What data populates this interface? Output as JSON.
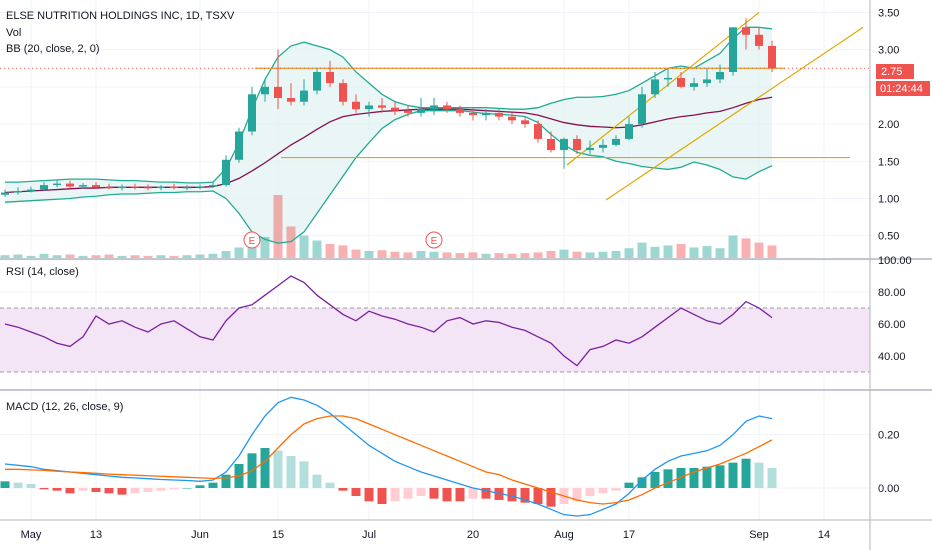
{
  "header": {
    "symbol": "ELSE NUTRITION HOLDINGS INC, 1D, TSXV",
    "vol_label": "Vol",
    "bb_label": "BB (20, close, 2, 0)"
  },
  "price_badge": {
    "value": "2.75",
    "countdown": "01:24:44",
    "color": "#ef5350"
  },
  "earnings_markers": [
    {
      "label": "E",
      "date_index": 19
    },
    {
      "label": "E",
      "date_index": 33
    }
  ],
  "rsi": {
    "title": "RSI (14, close)"
  },
  "macd": {
    "title": "MACD (12, 26, close, 9)"
  },
  "x_axis": {
    "ticks": [
      {
        "label": "May",
        "index": 2
      },
      {
        "label": "13",
        "index": 7
      },
      {
        "label": "Jun",
        "index": 15
      },
      {
        "label": "15",
        "index": 21
      },
      {
        "label": "Jul",
        "index": 28
      },
      {
        "label": "20",
        "index": 36
      },
      {
        "label": "Aug",
        "index": 43
      },
      {
        "label": "17",
        "index": 48
      },
      {
        "label": "Sep",
        "index": 58
      },
      {
        "label": "14",
        "index": 63
      }
    ]
  },
  "colors": {
    "up": "#26a69a",
    "down": "#ef5350",
    "bb_band": "#22ab94",
    "bb_basis": "#880e4f",
    "bb_fill": "#e0f2f1",
    "trend": "#e0a800",
    "rsi_line": "#7b1fa2",
    "rsi_fill": "#f3e5f5",
    "macd_line": "#2196f3",
    "signal_line": "#ff6d00"
  },
  "chart_data": [
    {
      "type": "candlestick",
      "title": "ELSE NUTRITION HOLDINGS INC, 1D, TSXV",
      "ylim": [
        0.2,
        3.6
      ],
      "yticks": [
        "3.50",
        "3.00",
        "2.50",
        "2.00",
        "1.50",
        "1.00",
        "0.50"
      ],
      "ytick_values": [
        3.5,
        3.0,
        2.5,
        2.0,
        1.5,
        1.0,
        0.5
      ],
      "current_price": 2.75,
      "open": [
        1.05,
        1.08,
        1.1,
        1.12,
        1.18,
        1.2,
        1.16,
        1.18,
        1.15,
        1.14,
        1.16,
        1.15,
        1.14,
        1.16,
        1.14,
        1.15,
        1.16,
        1.18,
        1.52,
        1.9,
        2.4,
        2.5,
        2.35,
        2.3,
        2.45,
        2.7,
        2.55,
        2.3,
        2.2,
        2.25,
        2.22,
        2.18,
        2.15,
        2.2,
        2.25,
        2.2,
        2.15,
        2.12,
        2.15,
        2.1,
        2.05,
        2.0,
        1.8,
        1.65,
        1.8,
        1.65,
        1.68,
        1.72,
        1.8,
        2.0,
        2.4,
        2.6,
        2.62,
        2.5,
        2.55,
        2.6,
        2.7,
        3.3,
        3.2,
        3.05
      ],
      "high": [
        1.12,
        1.15,
        1.16,
        1.22,
        1.25,
        1.24,
        1.21,
        1.22,
        1.2,
        1.19,
        1.2,
        1.19,
        1.18,
        1.2,
        1.18,
        1.19,
        1.22,
        1.58,
        1.95,
        2.5,
        2.6,
        3.0,
        2.55,
        2.6,
        2.75,
        2.85,
        2.6,
        2.4,
        2.3,
        2.35,
        2.3,
        2.25,
        2.35,
        2.35,
        2.3,
        2.25,
        2.22,
        2.2,
        2.2,
        2.15,
        2.1,
        2.05,
        1.9,
        1.82,
        1.85,
        1.78,
        1.8,
        1.85,
        2.1,
        2.5,
        2.7,
        2.75,
        2.7,
        2.62,
        2.75,
        2.8,
        3.3,
        3.42,
        3.3,
        3.12
      ],
      "low": [
        1.02,
        1.05,
        1.08,
        1.1,
        1.15,
        1.14,
        1.13,
        1.14,
        1.12,
        1.11,
        1.12,
        1.11,
        1.11,
        1.12,
        1.11,
        1.12,
        1.14,
        1.16,
        1.48,
        1.85,
        2.3,
        2.2,
        2.25,
        2.25,
        2.4,
        2.5,
        2.25,
        2.15,
        2.1,
        2.15,
        2.12,
        2.1,
        2.1,
        2.12,
        2.15,
        2.1,
        2.05,
        2.05,
        2.05,
        2.0,
        1.95,
        1.75,
        1.62,
        1.4,
        1.6,
        1.6,
        1.62,
        1.7,
        1.78,
        1.95,
        2.35,
        2.5,
        2.48,
        2.45,
        2.5,
        2.55,
        2.65,
        3.0,
        3.0,
        2.7
      ],
      "close": [
        1.08,
        1.1,
        1.12,
        1.18,
        1.2,
        1.16,
        1.18,
        1.15,
        1.14,
        1.16,
        1.15,
        1.14,
        1.16,
        1.14,
        1.15,
        1.16,
        1.18,
        1.52,
        1.9,
        2.4,
        2.5,
        2.35,
        2.3,
        2.45,
        2.7,
        2.55,
        2.3,
        2.2,
        2.25,
        2.22,
        2.18,
        2.15,
        2.2,
        2.25,
        2.2,
        2.15,
        2.12,
        2.15,
        2.1,
        2.05,
        2.0,
        1.8,
        1.65,
        1.8,
        1.65,
        1.68,
        1.72,
        1.8,
        2.0,
        2.4,
        2.6,
        2.62,
        2.5,
        2.55,
        2.6,
        2.7,
        3.3,
        3.2,
        3.05,
        2.75
      ],
      "volume": [
        0.04,
        0.05,
        0.03,
        0.06,
        0.04,
        0.05,
        0.03,
        0.04,
        0.05,
        0.03,
        0.04,
        0.03,
        0.04,
        0.03,
        0.04,
        0.05,
        0.06,
        0.1,
        0.15,
        0.22,
        0.3,
        0.9,
        0.45,
        0.32,
        0.25,
        0.2,
        0.18,
        0.12,
        0.1,
        0.11,
        0.09,
        0.08,
        0.1,
        0.09,
        0.08,
        0.07,
        0.08,
        0.06,
        0.07,
        0.06,
        0.07,
        0.08,
        0.1,
        0.12,
        0.09,
        0.08,
        0.09,
        0.1,
        0.14,
        0.22,
        0.16,
        0.18,
        0.2,
        0.15,
        0.17,
        0.14,
        0.32,
        0.28,
        0.22,
        0.18
      ],
      "bb_upper": [
        1.22,
        1.22,
        1.23,
        1.24,
        1.25,
        1.26,
        1.26,
        1.26,
        1.25,
        1.24,
        1.24,
        1.23,
        1.22,
        1.22,
        1.21,
        1.21,
        1.22,
        1.4,
        1.75,
        2.2,
        2.6,
        2.9,
        3.05,
        3.1,
        3.05,
        3.0,
        2.9,
        2.7,
        2.55,
        2.4,
        2.3,
        2.25,
        2.22,
        2.22,
        2.22,
        2.22,
        2.22,
        2.22,
        2.21,
        2.2,
        2.2,
        2.22,
        2.28,
        2.33,
        2.36,
        2.36,
        2.37,
        2.4,
        2.45,
        2.55,
        2.65,
        2.75,
        2.78,
        2.75,
        2.85,
        2.95,
        3.15,
        3.3,
        3.3,
        3.28
      ],
      "bb_basis": [
        1.08,
        1.09,
        1.1,
        1.11,
        1.12,
        1.13,
        1.14,
        1.14,
        1.15,
        1.15,
        1.15,
        1.15,
        1.15,
        1.15,
        1.15,
        1.15,
        1.16,
        1.2,
        1.27,
        1.37,
        1.48,
        1.6,
        1.72,
        1.82,
        1.93,
        2.03,
        2.1,
        2.13,
        2.15,
        2.17,
        2.18,
        2.19,
        2.2,
        2.2,
        2.2,
        2.2,
        2.19,
        2.18,
        2.17,
        2.16,
        2.15,
        2.12,
        2.07,
        2.02,
        1.99,
        1.97,
        1.96,
        1.95,
        1.96,
        1.99,
        2.03,
        2.07,
        2.1,
        2.12,
        2.15,
        2.17,
        2.22,
        2.28,
        2.33,
        2.36
      ],
      "bb_lower": [
        0.95,
        0.96,
        0.97,
        0.98,
        0.99,
        1.0,
        1.02,
        1.03,
        1.05,
        1.06,
        1.06,
        1.07,
        1.08,
        1.08,
        1.09,
        1.09,
        1.1,
        1.0,
        0.8,
        0.55,
        0.45,
        0.4,
        0.42,
        0.55,
        0.8,
        1.05,
        1.3,
        1.55,
        1.75,
        1.94,
        2.06,
        2.13,
        2.18,
        2.18,
        2.18,
        2.18,
        2.16,
        2.14,
        2.13,
        2.12,
        2.1,
        2.02,
        1.86,
        1.72,
        1.62,
        1.58,
        1.56,
        1.5,
        1.47,
        1.43,
        1.41,
        1.39,
        1.42,
        1.49,
        1.45,
        1.39,
        1.29,
        1.26,
        1.36,
        1.44
      ]
    },
    {
      "type": "line",
      "title": "RSI (14, close)",
      "ylim": [
        20,
        100
      ],
      "yticks": [
        "100.00",
        "80.00",
        "60.00",
        "40.00"
      ],
      "ytick_values": [
        100,
        80,
        60,
        40
      ],
      "band": [
        30,
        70
      ],
      "values": [
        60,
        58,
        55,
        52,
        48,
        46,
        52,
        65,
        60,
        62,
        58,
        55,
        60,
        62,
        57,
        52,
        50,
        62,
        70,
        72,
        78,
        84,
        90,
        86,
        78,
        72,
        66,
        62,
        68,
        65,
        63,
        60,
        58,
        55,
        62,
        64,
        60,
        62,
        61,
        58,
        56,
        52,
        48,
        40,
        34,
        44,
        46,
        50,
        48,
        52,
        58,
        64,
        70,
        66,
        62,
        60,
        66,
        74,
        70,
        64
      ]
    },
    {
      "type": "bar_line",
      "title": "MACD (12, 26, close, 9)",
      "ylim": [
        -0.12,
        0.36
      ],
      "yticks": [
        "0.20",
        "0.00"
      ],
      "ytick_values": [
        0.2,
        0.0
      ],
      "histogram": [
        0.025,
        0.02,
        0.015,
        -0.005,
        -0.01,
        -0.02,
        -0.01,
        -0.015,
        -0.02,
        -0.025,
        -0.02,
        -0.015,
        -0.01,
        -0.005,
        0.0,
        0.01,
        0.02,
        0.05,
        0.09,
        0.13,
        0.15,
        0.14,
        0.12,
        0.1,
        0.05,
        0.02,
        -0.01,
        -0.03,
        -0.05,
        -0.06,
        -0.05,
        -0.04,
        -0.03,
        -0.04,
        -0.05,
        -0.05,
        -0.04,
        -0.04,
        -0.045,
        -0.05,
        -0.055,
        -0.06,
        -0.07,
        -0.06,
        -0.05,
        -0.03,
        -0.02,
        -0.01,
        0.02,
        0.04,
        0.06,
        0.07,
        0.075,
        0.075,
        0.08,
        0.085,
        0.095,
        0.11,
        0.095,
        0.075
      ],
      "macd": [
        0.09,
        0.085,
        0.08,
        0.07,
        0.065,
        0.06,
        0.055,
        0.05,
        0.045,
        0.04,
        0.038,
        0.035,
        0.032,
        0.03,
        0.028,
        0.025,
        0.03,
        0.06,
        0.12,
        0.2,
        0.27,
        0.32,
        0.34,
        0.33,
        0.31,
        0.28,
        0.24,
        0.2,
        0.16,
        0.13,
        0.1,
        0.08,
        0.06,
        0.045,
        0.03,
        0.015,
        0.0,
        -0.01,
        -0.02,
        -0.03,
        -0.045,
        -0.06,
        -0.08,
        -0.1,
        -0.105,
        -0.1,
        -0.08,
        -0.06,
        -0.02,
        0.03,
        0.07,
        0.1,
        0.12,
        0.13,
        0.14,
        0.16,
        0.2,
        0.25,
        0.27,
        0.26
      ],
      "signal": [
        0.07,
        0.07,
        0.068,
        0.066,
        0.063,
        0.06,
        0.058,
        0.055,
        0.052,
        0.05,
        0.048,
        0.046,
        0.044,
        0.042,
        0.04,
        0.038,
        0.036,
        0.038,
        0.045,
        0.065,
        0.1,
        0.15,
        0.2,
        0.24,
        0.26,
        0.27,
        0.27,
        0.26,
        0.24,
        0.22,
        0.2,
        0.18,
        0.16,
        0.14,
        0.12,
        0.1,
        0.08,
        0.06,
        0.05,
        0.03,
        0.015,
        0.0,
        -0.015,
        -0.03,
        -0.045,
        -0.055,
        -0.06,
        -0.055,
        -0.045,
        -0.025,
        0.0,
        0.02,
        0.04,
        0.06,
        0.075,
        0.09,
        0.11,
        0.13,
        0.155,
        0.18
      ]
    }
  ]
}
